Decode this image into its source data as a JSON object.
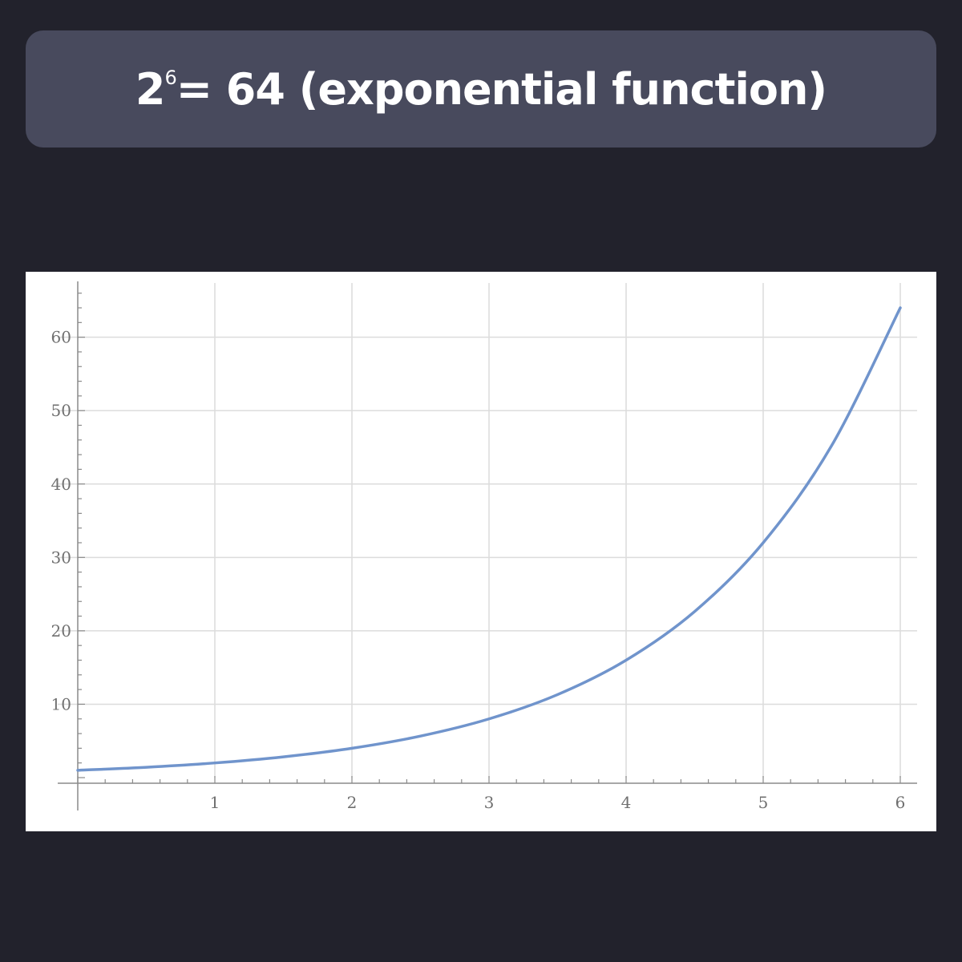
{
  "title": {
    "base": "2",
    "exponent": "6",
    "rest": "= 64 (exponential function)"
  },
  "chart_data": {
    "type": "line",
    "function": "2^x",
    "xlim": [
      0,
      6
    ],
    "ylim": [
      0,
      66
    ],
    "x_ticks": [
      1,
      2,
      3,
      4,
      5,
      6
    ],
    "y_ticks": [
      10,
      20,
      30,
      40,
      50,
      60
    ],
    "grid": true,
    "series": [
      {
        "color": "#7094cc",
        "x": [
          0,
          0.5,
          1,
          1.5,
          2,
          2.5,
          3,
          3.5,
          4,
          4.5,
          5,
          5.5,
          6
        ],
        "y": [
          1,
          1.41,
          2,
          2.83,
          4,
          5.66,
          8,
          11.31,
          16,
          22.63,
          32,
          45.25,
          64
        ]
      }
    ]
  },
  "colors": {
    "background": "#22222c",
    "banner": "#484a5d",
    "curve": "#7094cc",
    "grid": "#dcdcdc"
  }
}
